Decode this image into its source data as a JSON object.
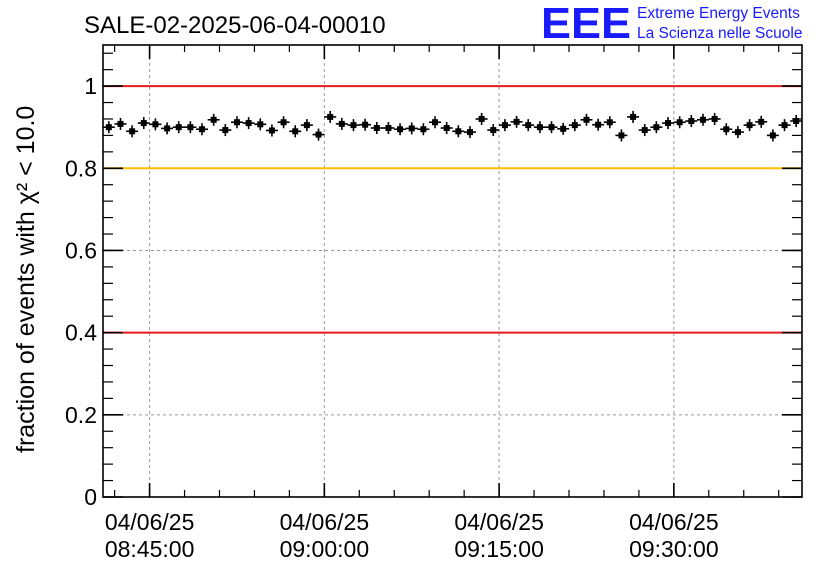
{
  "chart_data": {
    "type": "scatter",
    "title": "SALE-02-2025-06-04-00010",
    "ylabel": "fraction of events with χ² < 10.0",
    "ylim": [
      0,
      1.1
    ],
    "yticks": [
      0,
      0.2,
      0.4,
      0.6,
      0.8,
      1
    ],
    "ytick_labels": [
      "0",
      "0.2",
      "0.4",
      "0.6",
      "0.8",
      "1"
    ],
    "xlim": [
      "04/06/25 08:41:00",
      "04/06/25 09:41:00"
    ],
    "xticks": [
      {
        "date": "04/06/25",
        "time": "08:45:00"
      },
      {
        "date": "04/06/25",
        "time": "09:00:00"
      },
      {
        "date": "04/06/25",
        "time": "09:15:00"
      },
      {
        "date": "04/06/25",
        "time": "09:30:00"
      }
    ],
    "grid": true,
    "reference_lines": [
      {
        "y": 1.0,
        "color": "#e41a1c"
      },
      {
        "y": 0.8,
        "color": "#ffbf00"
      },
      {
        "y": 0.4,
        "color": "#e41a1c"
      }
    ],
    "series": [
      {
        "color": "#000000",
        "x": [
          "08:41:30",
          "08:42:30",
          "08:43:30",
          "08:44:30",
          "08:45:30",
          "08:46:30",
          "08:47:30",
          "08:48:30",
          "08:49:30",
          "08:50:30",
          "08:51:30",
          "08:52:30",
          "08:53:30",
          "08:54:30",
          "08:55:30",
          "08:56:30",
          "08:57:30",
          "08:58:30",
          "08:59:30",
          "09:00:30",
          "09:01:30",
          "09:02:30",
          "09:03:30",
          "09:04:30",
          "09:05:30",
          "09:06:30",
          "09:07:30",
          "09:08:30",
          "09:09:30",
          "09:10:30",
          "09:11:30",
          "09:12:30",
          "09:13:30",
          "09:14:30",
          "09:15:30",
          "09:16:30",
          "09:17:30",
          "09:18:30",
          "09:19:30",
          "09:20:30",
          "09:21:30",
          "09:22:30",
          "09:23:30",
          "09:24:30",
          "09:25:30",
          "09:26:30",
          "09:27:30",
          "09:28:30",
          "09:29:30",
          "09:30:30",
          "09:31:30",
          "09:32:30",
          "09:33:30",
          "09:34:30",
          "09:35:30",
          "09:36:30",
          "09:37:30",
          "09:38:30",
          "09:39:30",
          "09:40:30"
        ],
        "y": [
          0.9,
          0.908,
          0.89,
          0.91,
          0.907,
          0.897,
          0.9,
          0.9,
          0.895,
          0.918,
          0.893,
          0.912,
          0.91,
          0.907,
          0.892,
          0.912,
          0.89,
          0.905,
          0.882,
          0.925,
          0.908,
          0.905,
          0.906,
          0.898,
          0.898,
          0.895,
          0.897,
          0.895,
          0.912,
          0.898,
          0.89,
          0.888,
          0.92,
          0.893,
          0.905,
          0.913,
          0.905,
          0.9,
          0.9,
          0.896,
          0.905,
          0.918,
          0.906,
          0.912,
          0.88,
          0.925,
          0.893,
          0.9,
          0.91,
          0.912,
          0.915,
          0.918,
          0.92,
          0.895,
          0.888,
          0.905,
          0.913,
          0.88,
          0.905,
          0.915
        ]
      }
    ]
  },
  "logo": {
    "mark": "EEE",
    "line1": "Extreme Energy Events",
    "line2": "La Scienza nelle Scuole",
    "color": "#1a1aff"
  }
}
